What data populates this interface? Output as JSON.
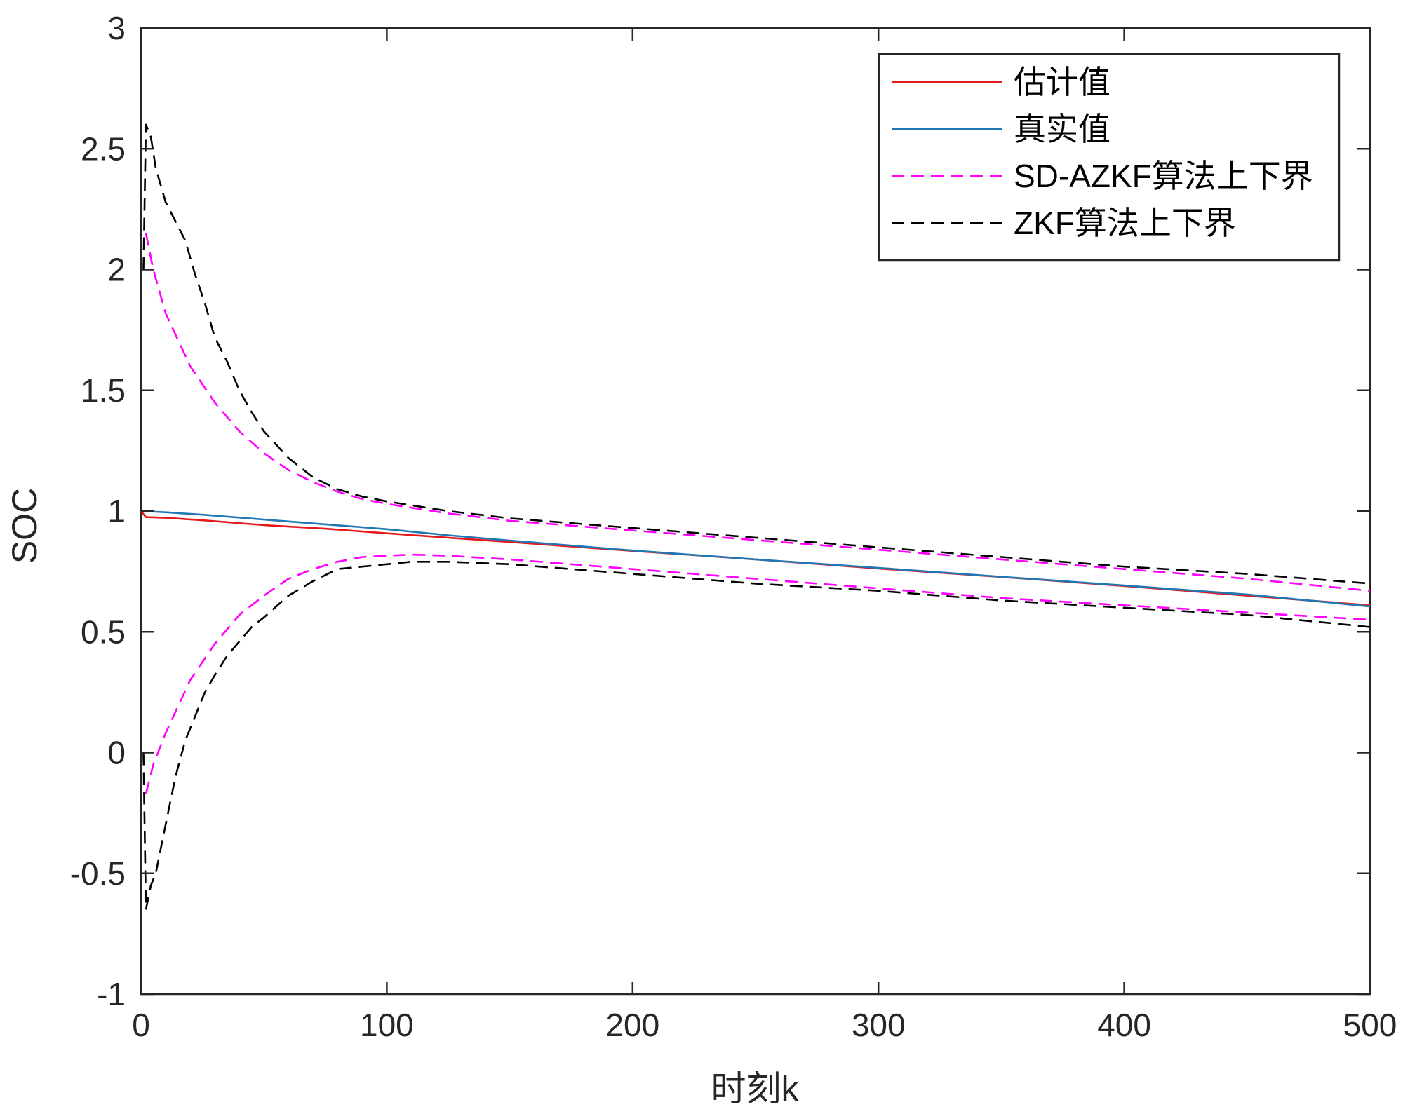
{
  "chart_data": {
    "type": "line",
    "xlabel": "时刻k",
    "ylabel": "SOC",
    "xlim": [
      0,
      500
    ],
    "ylim": [
      -1,
      3
    ],
    "xticks": [
      0,
      100,
      200,
      300,
      400,
      500
    ],
    "yticks": [
      -1,
      -0.5,
      0,
      0.5,
      1,
      1.5,
      2,
      2.5,
      3
    ],
    "xtick_labels": [
      "0",
      "100",
      "200",
      "300",
      "400",
      "500"
    ],
    "ytick_labels": [
      "-1",
      "-0.5",
      "0",
      "0.5",
      "1",
      "1.5",
      "2",
      "2.5",
      "3"
    ],
    "grid": false,
    "legend_position": "top-right",
    "series": [
      {
        "name": "估计值",
        "color": "#e41a1c",
        "dash": "solid",
        "x": [
          0,
          2,
          10,
          25,
          50,
          75,
          100,
          125,
          150,
          200,
          250,
          300,
          350,
          400,
          450,
          500
        ],
        "y": [
          1.0,
          0.975,
          0.972,
          0.962,
          0.942,
          0.927,
          0.908,
          0.89,
          0.872,
          0.835,
          0.8,
          0.762,
          0.727,
          0.69,
          0.65,
          0.61
        ]
      },
      {
        "name": "真实值",
        "color": "#1f77b4",
        "dash": "solid",
        "x": [
          0,
          10,
          25,
          50,
          75,
          100,
          125,
          150,
          200,
          250,
          300,
          350,
          400,
          450,
          500
        ],
        "y": [
          1.0,
          0.995,
          0.985,
          0.965,
          0.945,
          0.925,
          0.9,
          0.878,
          0.837,
          0.8,
          0.765,
          0.728,
          0.692,
          0.655,
          0.605
        ]
      },
      {
        "name": "SD-AZKF算法上下界",
        "color": "#ff00ff",
        "dash": "dashed",
        "x": [
          2,
          5,
          10,
          20,
          30,
          40,
          50,
          60,
          70,
          80,
          90,
          100,
          125,
          150,
          200,
          250,
          300,
          350,
          400,
          450,
          500
        ],
        "y": [
          2.15,
          2.0,
          1.82,
          1.6,
          1.45,
          1.33,
          1.24,
          1.17,
          1.12,
          1.08,
          1.05,
          1.03,
          0.99,
          0.96,
          0.92,
          0.88,
          0.84,
          0.8,
          0.76,
          0.72,
          0.67
        ]
      },
      {
        "name": "",
        "color": "#ff00ff",
        "dash": "dashed",
        "x": [
          2,
          5,
          10,
          20,
          30,
          40,
          50,
          60,
          70,
          80,
          90,
          100,
          110,
          125,
          150,
          200,
          250,
          300,
          350,
          400,
          450,
          500
        ],
        "y": [
          -0.17,
          -0.05,
          0.08,
          0.3,
          0.45,
          0.57,
          0.65,
          0.72,
          0.76,
          0.79,
          0.81,
          0.815,
          0.82,
          0.815,
          0.8,
          0.76,
          0.72,
          0.68,
          0.64,
          0.61,
          0.58,
          0.55
        ]
      },
      {
        "name": "ZKF算法上下界",
        "color": "#000000",
        "dash": "dashed",
        "x": [
          1,
          2,
          4,
          6,
          8,
          10,
          14,
          18,
          22,
          26,
          30,
          35,
          40,
          45,
          50,
          60,
          70,
          80,
          90,
          100,
          125,
          150,
          200,
          250,
          300,
          350,
          400,
          450,
          500
        ],
        "y": [
          2.0,
          2.6,
          2.55,
          2.42,
          2.35,
          2.28,
          2.2,
          2.12,
          1.98,
          1.86,
          1.72,
          1.62,
          1.5,
          1.41,
          1.33,
          1.22,
          1.14,
          1.09,
          1.06,
          1.04,
          1.0,
          0.97,
          0.93,
          0.89,
          0.85,
          0.81,
          0.77,
          0.74,
          0.7
        ]
      },
      {
        "name": "",
        "color": "#000000",
        "dash": "dashed",
        "x": [
          1,
          2,
          4,
          6,
          8,
          10,
          14,
          18,
          22,
          26,
          30,
          35,
          40,
          45,
          50,
          60,
          70,
          80,
          90,
          100,
          110,
          125,
          150,
          200,
          250,
          300,
          350,
          400,
          450,
          500
        ],
        "y": [
          0.0,
          -0.65,
          -0.55,
          -0.5,
          -0.4,
          -0.3,
          -0.1,
          0.05,
          0.15,
          0.25,
          0.32,
          0.4,
          0.46,
          0.52,
          0.56,
          0.65,
          0.71,
          0.76,
          0.77,
          0.78,
          0.79,
          0.79,
          0.78,
          0.74,
          0.7,
          0.67,
          0.63,
          0.6,
          0.57,
          0.52
        ]
      }
    ]
  }
}
